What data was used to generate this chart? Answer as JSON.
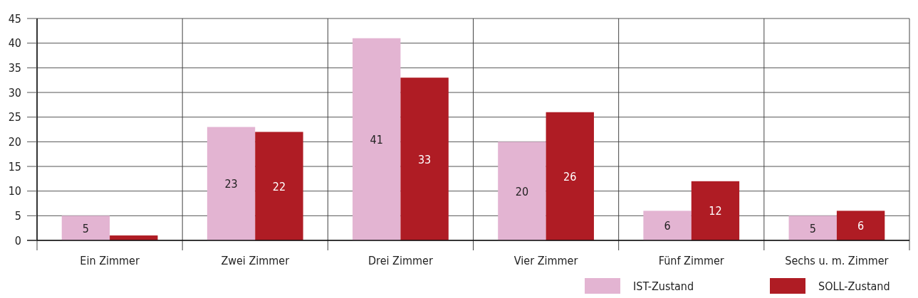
{
  "chart_data": {
    "type": "bar",
    "categories": [
      "Ein Zimmer",
      "Zwei Zimmer",
      "Drei Zimmer",
      "Vier Zimmer",
      "Fünf Zimmer",
      "Sechs u. m. Zimmer"
    ],
    "series": [
      {
        "name": "IST-Zustand",
        "color": "#e3b4d2",
        "values": [
          5,
          23,
          41,
          20,
          6,
          5
        ],
        "value_labels": [
          "5",
          "23",
          "41",
          "20",
          "6",
          "5"
        ]
      },
      {
        "name": "SOLL-Zustand",
        "color": "#af1c24",
        "values": [
          1,
          22,
          33,
          26,
          12,
          6
        ],
        "value_labels": [
          null,
          "22",
          "33",
          "26",
          "12",
          "6"
        ]
      }
    ],
    "ylim": [
      0,
      45
    ],
    "yticks": [
      0,
      5,
      10,
      15,
      20,
      25,
      30,
      35,
      40,
      45
    ],
    "grid": true,
    "legend": "bottom right"
  }
}
